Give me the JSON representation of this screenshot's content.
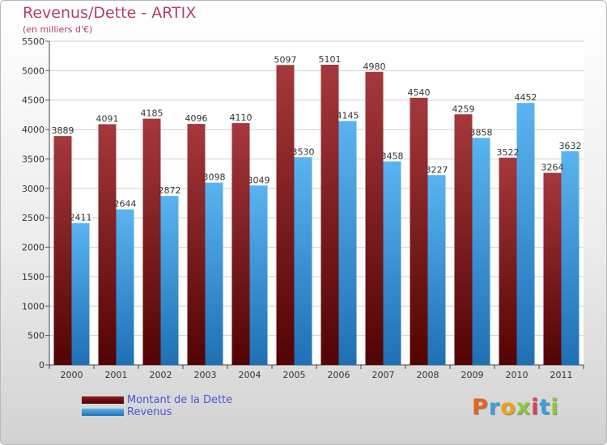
{
  "chart_data": {
    "type": "bar",
    "title": "Revenus/Dette - ARTIX",
    "subtitle": "(en milliers d'€)",
    "categories": [
      "2000",
      "2001",
      "2002",
      "2003",
      "2004",
      "2005",
      "2006",
      "2007",
      "2008",
      "2009",
      "2010",
      "2011"
    ],
    "series": [
      {
        "name": "Montant de la Dette",
        "values": [
          3889,
          4091,
          4185,
          4096,
          4110,
          5097,
          5101,
          4980,
          4540,
          4259,
          3522,
          3264
        ],
        "color": "#8b1c22"
      },
      {
        "name": "Revenus",
        "values": [
          2411,
          2644,
          2872,
          3098,
          3049,
          3530,
          4145,
          3458,
          3227,
          3858,
          4452,
          3632
        ],
        "color": "#3f9be0"
      }
    ],
    "ylim": [
      0,
      5500
    ],
    "yticks": [
      0,
      500,
      1000,
      1500,
      2000,
      2500,
      3000,
      3500,
      4000,
      4500,
      5000,
      5500
    ],
    "grid": true,
    "legend_position": "bottom-left"
  },
  "logo": {
    "letters": [
      "P",
      "r",
      "o",
      "x",
      "i",
      "t",
      "i"
    ],
    "colors": [
      "#e8641e",
      "#3aa0e0",
      "#f0a01e",
      "#8cc83c",
      "#e23c5a",
      "#3aa0e0",
      "#8cc83c"
    ]
  }
}
